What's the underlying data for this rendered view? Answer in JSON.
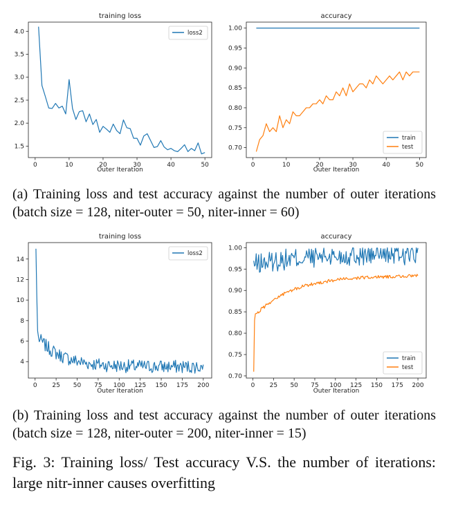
{
  "chart_data": [
    {
      "type": "line",
      "title": "training loss",
      "xlabel": "Outer Iteration",
      "ylabel": "",
      "xlim": [
        -2,
        52
      ],
      "ylim": [
        1.25,
        4.2
      ],
      "xticks": [
        0,
        10,
        20,
        30,
        40,
        50
      ],
      "yticks": [
        1.5,
        2.0,
        2.5,
        3.0,
        3.5,
        4.0
      ],
      "ytick_decimals": 1,
      "legend": "top-right",
      "series": [
        {
          "name": "loss2",
          "color": "#1f77b4",
          "x": [
            1,
            2,
            3,
            4,
            5,
            6,
            7,
            8,
            9,
            10,
            11,
            12,
            13,
            14,
            15,
            16,
            17,
            18,
            19,
            20,
            21,
            22,
            23,
            24,
            25,
            26,
            27,
            28,
            29,
            30,
            31,
            32,
            33,
            34,
            35,
            36,
            37,
            38,
            39,
            40,
            41,
            42,
            43,
            44,
            45,
            46,
            47,
            48,
            49,
            50
          ],
          "values": [
            4.1,
            2.82,
            2.58,
            2.33,
            2.32,
            2.43,
            2.33,
            2.37,
            2.2,
            2.95,
            2.32,
            2.08,
            2.25,
            2.27,
            2.03,
            2.2,
            1.97,
            2.08,
            1.8,
            1.93,
            1.87,
            1.8,
            1.98,
            1.84,
            1.77,
            2.07,
            1.9,
            1.88,
            1.67,
            1.67,
            1.52,
            1.72,
            1.77,
            1.62,
            1.47,
            1.49,
            1.62,
            1.48,
            1.42,
            1.45,
            1.4,
            1.38,
            1.45,
            1.53,
            1.38,
            1.45,
            1.4,
            1.57,
            1.33,
            1.36
          ]
        }
      ]
    },
    {
      "type": "line",
      "title": "accuracy",
      "xlabel": "Outer Iteration",
      "ylabel": "",
      "xlim": [
        -2,
        52
      ],
      "ylim": [
        0.675,
        1.015
      ],
      "xticks": [
        0,
        10,
        20,
        30,
        40,
        50
      ],
      "yticks": [
        0.7,
        0.75,
        0.8,
        0.85,
        0.9,
        0.95,
        1.0
      ],
      "ytick_decimals": 2,
      "legend": "bottom-right",
      "series": [
        {
          "name": "train",
          "color": "#1f77b4",
          "x": [
            1,
            50
          ],
          "values": [
            1.0,
            1.0
          ]
        },
        {
          "name": "test",
          "color": "#ff7f0e",
          "x": [
            1,
            2,
            3,
            4,
            5,
            6,
            7,
            8,
            9,
            10,
            11,
            12,
            13,
            14,
            15,
            16,
            17,
            18,
            19,
            20,
            21,
            22,
            23,
            24,
            25,
            26,
            27,
            28,
            29,
            30,
            31,
            32,
            33,
            34,
            35,
            36,
            37,
            38,
            39,
            40,
            41,
            42,
            43,
            44,
            45,
            46,
            47,
            48,
            49,
            50
          ],
          "values": [
            0.69,
            0.72,
            0.73,
            0.76,
            0.74,
            0.75,
            0.74,
            0.78,
            0.75,
            0.77,
            0.76,
            0.79,
            0.78,
            0.78,
            0.79,
            0.8,
            0.8,
            0.81,
            0.81,
            0.82,
            0.81,
            0.83,
            0.82,
            0.82,
            0.84,
            0.83,
            0.85,
            0.83,
            0.86,
            0.84,
            0.85,
            0.86,
            0.86,
            0.85,
            0.87,
            0.86,
            0.88,
            0.87,
            0.86,
            0.87,
            0.88,
            0.87,
            0.88,
            0.89,
            0.87,
            0.89,
            0.88,
            0.89,
            0.89,
            0.89
          ]
        }
      ]
    },
    {
      "type": "line",
      "title": "training loss",
      "xlabel": "Outer Iteration",
      "ylabel": "",
      "xlim": [
        -8,
        210
      ],
      "ylim": [
        2.4,
        15.6
      ],
      "xticks": [
        0,
        25,
        50,
        75,
        100,
        125,
        150,
        175,
        200
      ],
      "yticks": [
        4,
        6,
        8,
        10,
        12,
        14
      ],
      "ytick_decimals": 0,
      "legend": "top-right",
      "series": [
        {
          "name": "loss2",
          "color": "#1f77b4",
          "generator": "loss200"
        }
      ]
    },
    {
      "type": "line",
      "title": "accuracy",
      "xlabel": "Outer Iteration",
      "ylabel": "",
      "xlim": [
        -8,
        210
      ],
      "ylim": [
        0.695,
        1.012
      ],
      "xticks": [
        0,
        25,
        50,
        75,
        100,
        125,
        150,
        175,
        200
      ],
      "yticks": [
        0.7,
        0.75,
        0.8,
        0.85,
        0.9,
        0.95,
        1.0
      ],
      "ytick_decimals": 2,
      "legend": "bottom-right",
      "series": [
        {
          "name": "train",
          "color": "#1f77b4",
          "generator": "train200"
        },
        {
          "name": "test",
          "color": "#ff7f0e",
          "generator": "test200"
        }
      ]
    }
  ],
  "captions": {
    "a": "(a) Training loss and test accuracy against the number of outer iterations (batch size = 128, niter-outer = 50, niter-inner = 60)",
    "b": "(b) Training loss and test accuracy against the number of outer iterations (batch size = 128, niter-outer = 200, niter-inner = 15)",
    "fig": "Fig. 3: Training loss/ Test accuracy V.S. the number of iterations: large nitr-inner causes overfitting"
  }
}
